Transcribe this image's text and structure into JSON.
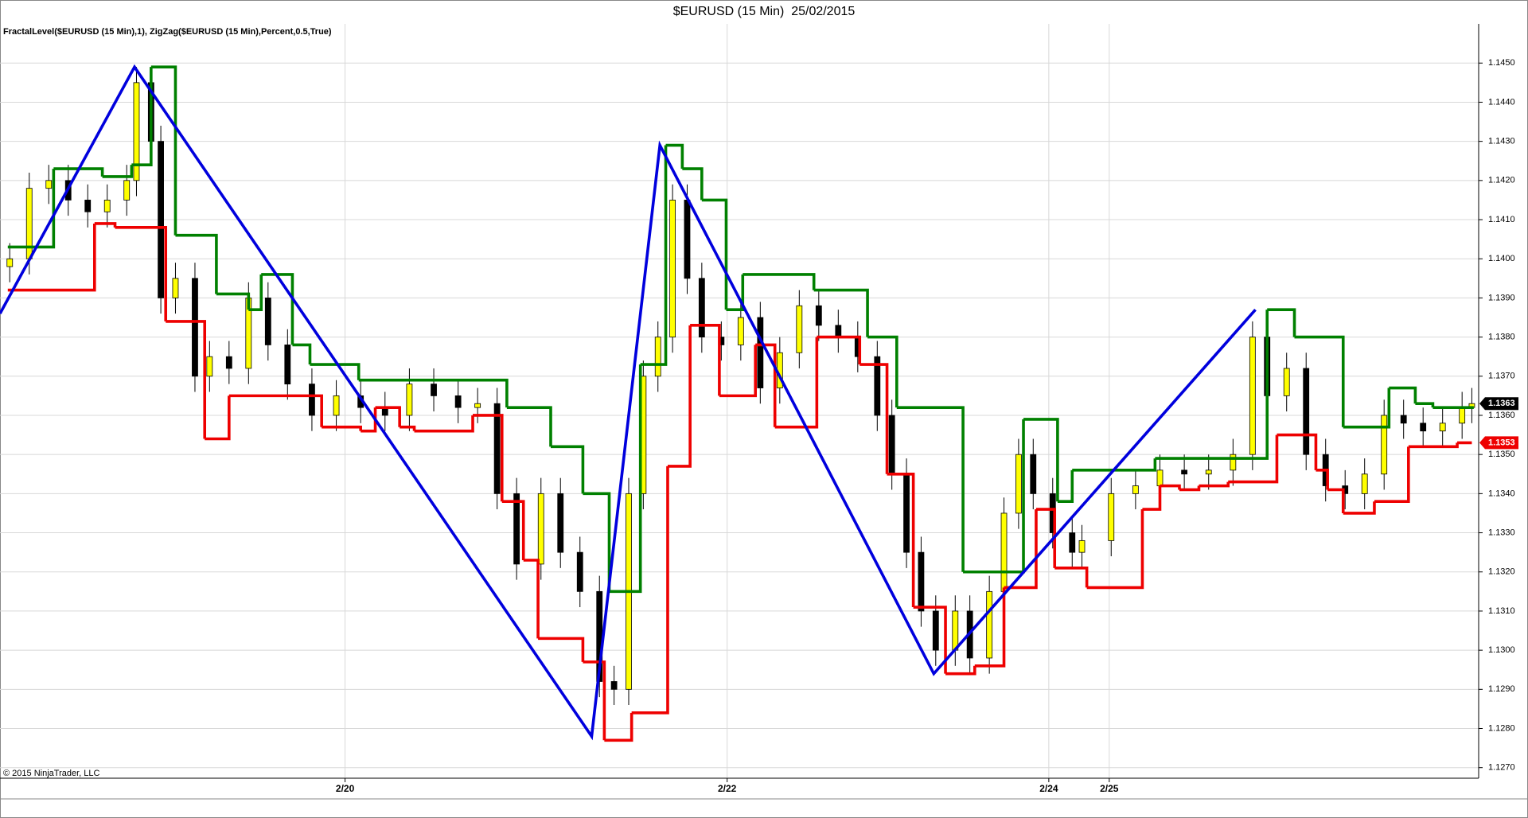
{
  "chart_data": {
    "type": "candlestick",
    "title": "$EURUSD (15 Min)  25/02/2015",
    "subtitle": "FractalLevel($EURUSD (15 Min),1), ZigZag($EURUSD (15 Min),Percent,0.5,True)",
    "footnote": "© 2015 NinjaTrader, LLC",
    "xlim": [
      0,
      303.4
    ],
    "ylim": [
      1.12675,
      1.14592
    ],
    "grid": true,
    "xticks": [
      {
        "value": 70.8,
        "label": "2/20"
      },
      {
        "value": 149.2,
        "label": "2/22"
      },
      {
        "value": 215.2,
        "label": "2/24"
      },
      {
        "value": 227.6,
        "label": "2/25"
      }
    ],
    "yticks": [
      {
        "value": 1.127,
        "label": "1.1270"
      },
      {
        "value": 1.128,
        "label": "1.1280"
      },
      {
        "value": 1.129,
        "label": "1.1290"
      },
      {
        "value": 1.13,
        "label": "1.1300"
      },
      {
        "value": 1.131,
        "label": "1.1310"
      },
      {
        "value": 1.132,
        "label": "1.1320"
      },
      {
        "value": 1.133,
        "label": "1.1330"
      },
      {
        "value": 1.134,
        "label": "1.1340"
      },
      {
        "value": 1.135,
        "label": "1.1350"
      },
      {
        "value": 1.136,
        "label": "1.1360"
      },
      {
        "value": 1.137,
        "label": "1.1370"
      },
      {
        "value": 1.138,
        "label": "1.1380"
      },
      {
        "value": 1.139,
        "label": "1.1390"
      },
      {
        "value": 1.14,
        "label": "1.1400"
      },
      {
        "value": 1.141,
        "label": "1.1410"
      },
      {
        "value": 1.142,
        "label": "1.1420"
      },
      {
        "value": 1.143,
        "label": "1.1430"
      },
      {
        "value": 1.144,
        "label": "1.1440"
      },
      {
        "value": 1.145,
        "label": "1.1450"
      }
    ],
    "up_color": "#ffff00",
    "down_color": "#000000",
    "x": [
      2,
      6,
      10,
      14,
      18,
      22,
      26,
      28,
      31,
      33,
      36,
      40,
      43,
      47,
      51,
      55,
      59,
      64,
      69,
      74,
      79,
      84,
      89,
      94,
      98,
      102,
      106,
      111,
      115,
      119,
      123,
      126,
      129,
      132,
      135,
      138,
      141,
      144,
      148,
      152,
      156,
      160,
      164,
      168,
      172,
      176,
      180,
      183,
      186,
      189,
      192,
      196,
      199,
      203,
      206,
      209,
      212,
      216,
      220,
      222,
      228,
      233,
      238,
      243,
      248,
      253,
      257,
      260,
      264,
      268,
      272,
      276,
      280,
      284,
      288,
      292,
      296,
      300,
      302
    ],
    "open": [
      1.1398,
      1.14,
      1.1418,
      1.142,
      1.1415,
      1.1412,
      1.1415,
      1.142,
      1.1445,
      1.143,
      1.139,
      1.1395,
      1.137,
      1.1375,
      1.1372,
      1.139,
      1.1378,
      1.1368,
      1.136,
      1.1365,
      1.1362,
      1.136,
      1.1368,
      1.1365,
      1.1362,
      1.1363,
      1.134,
      1.1322,
      1.134,
      1.1325,
      1.1315,
      1.1292,
      1.129,
      1.134,
      1.137,
      1.138,
      1.1415,
      1.1395,
      1.138,
      1.1378,
      1.1385,
      1.1367,
      1.1376,
      1.1388,
      1.1383,
      1.138,
      1.1375,
      1.136,
      1.1345,
      1.1325,
      1.131,
      1.13,
      1.131,
      1.1298,
      1.1315,
      1.1335,
      1.135,
      1.134,
      1.133,
      1.1325,
      1.1328,
      1.134,
      1.1342,
      1.1346,
      1.1345,
      1.1346,
      1.135,
      1.138,
      1.1365,
      1.1372,
      1.135,
      1.1342,
      1.134,
      1.1345,
      1.136,
      1.1358,
      1.1356,
      1.1358,
      1.1362
    ],
    "high": [
      1.1404,
      1.1422,
      1.1424,
      1.1424,
      1.1419,
      1.1419,
      1.1424,
      1.1449,
      1.1449,
      1.1434,
      1.1399,
      1.1399,
      1.1379,
      1.1379,
      1.1394,
      1.1394,
      1.1382,
      1.1372,
      1.1369,
      1.1369,
      1.1366,
      1.1372,
      1.1372,
      1.1369,
      1.1367,
      1.1367,
      1.1344,
      1.1344,
      1.1344,
      1.1329,
      1.1319,
      1.1296,
      1.1344,
      1.1374,
      1.1384,
      1.1419,
      1.1419,
      1.1399,
      1.1384,
      1.1389,
      1.1389,
      1.138,
      1.1392,
      1.1392,
      1.1387,
      1.1384,
      1.1379,
      1.1364,
      1.1349,
      1.1329,
      1.1314,
      1.1314,
      1.1314,
      1.1319,
      1.1339,
      1.1354,
      1.1354,
      1.1344,
      1.1334,
      1.1332,
      1.1344,
      1.1346,
      1.135,
      1.135,
      1.135,
      1.1354,
      1.1384,
      1.1384,
      1.1376,
      1.1376,
      1.1354,
      1.1346,
      1.1349,
      1.1364,
      1.1364,
      1.1362,
      1.1362,
      1.1366,
      1.1367
    ],
    "low": [
      1.1394,
      1.1396,
      1.1414,
      1.1411,
      1.1408,
      1.1408,
      1.1411,
      1.1416,
      1.1426,
      1.1386,
      1.1386,
      1.1366,
      1.1366,
      1.1368,
      1.1368,
      1.1374,
      1.1364,
      1.1356,
      1.1356,
      1.1358,
      1.1356,
      1.1356,
      1.1361,
      1.1358,
      1.1358,
      1.1336,
      1.1318,
      1.1318,
      1.1321,
      1.1311,
      1.1288,
      1.1286,
      1.1286,
      1.1336,
      1.1366,
      1.1376,
      1.1391,
      1.1376,
      1.1374,
      1.1374,
      1.1363,
      1.1363,
      1.1372,
      1.1379,
      1.1376,
      1.1371,
      1.1356,
      1.1341,
      1.1321,
      1.1306,
      1.1296,
      1.1296,
      1.1294,
      1.1294,
      1.1311,
      1.1331,
      1.1336,
      1.1326,
      1.1321,
      1.1321,
      1.1324,
      1.1336,
      1.1338,
      1.1341,
      1.1341,
      1.1342,
      1.1346,
      1.1361,
      1.1361,
      1.1346,
      1.1338,
      1.1336,
      1.1336,
      1.1341,
      1.1354,
      1.1352,
      1.1352,
      1.1354,
      1.1358
    ],
    "close": [
      1.14,
      1.1418,
      1.142,
      1.1415,
      1.1412,
      1.1415,
      1.142,
      1.1445,
      1.143,
      1.139,
      1.1395,
      1.137,
      1.1375,
      1.1372,
      1.139,
      1.1378,
      1.1368,
      1.136,
      1.1365,
      1.1362,
      1.136,
      1.1368,
      1.1365,
      1.1362,
      1.1363,
      1.134,
      1.1322,
      1.134,
      1.1325,
      1.1315,
      1.1292,
      1.129,
      1.134,
      1.137,
      1.138,
      1.1415,
      1.1395,
      1.138,
      1.1378,
      1.1385,
      1.1367,
      1.1376,
      1.1388,
      1.1383,
      1.138,
      1.1375,
      1.136,
      1.1345,
      1.1325,
      1.131,
      1.13,
      1.131,
      1.1298,
      1.1315,
      1.1335,
      1.135,
      1.134,
      1.133,
      1.1325,
      1.1328,
      1.134,
      1.1342,
      1.1346,
      1.1345,
      1.1346,
      1.135,
      1.138,
      1.1365,
      1.1372,
      1.135,
      1.1342,
      1.134,
      1.1345,
      1.136,
      1.1358,
      1.1356,
      1.1358,
      1.1362,
      1.1363
    ],
    "series": [
      {
        "style": "step",
        "color": "#008000",
        "x": [
          1.6,
          11,
          21,
          27,
          31,
          36,
          44.4,
          51,
          53.6,
          60,
          63.6,
          73.6,
          104,
          113,
          119.6,
          125,
          131.4,
          136.6,
          140,
          144,
          149,
          152.4,
          167,
          178,
          184,
          197.6,
          210,
          217,
          220,
          237,
          260,
          265.6,
          275.6,
          285,
          290.4,
          294,
          302.4
        ],
        "values": [
          1.1403,
          1.1423,
          1.1421,
          1.1424,
          1.1449,
          1.1406,
          1.1391,
          1.1387,
          1.1396,
          1.1378,
          1.1373,
          1.1369,
          1.1362,
          1.1352,
          1.134,
          1.1315,
          1.1373,
          1.1429,
          1.1423,
          1.1415,
          1.1387,
          1.1396,
          1.1392,
          1.138,
          1.1362,
          1.132,
          1.1359,
          1.1338,
          1.1346,
          1.1349,
          1.1387,
          1.138,
          1.1357,
          1.1367,
          1.1363,
          1.1362,
          1.1362
        ]
      },
      {
        "style": "step",
        "color": "#ee0000",
        "x": [
          1.6,
          19.4,
          23.6,
          34,
          42,
          47,
          66,
          74,
          77,
          82,
          85,
          97,
          103,
          107.4,
          110.4,
          119.6,
          124,
          129.6,
          137,
          141.6,
          147.6,
          155,
          159,
          167.6,
          176.4,
          182,
          187.4,
          194,
          200,
          206,
          212.6,
          216.4,
          223,
          234.4,
          238,
          242,
          246,
          252,
          262,
          270,
          272.4,
          275.6,
          282,
          289,
          299,
          302
        ],
        "values": [
          1.1392,
          1.1409,
          1.1408,
          1.1384,
          1.1354,
          1.1365,
          1.1357,
          1.1356,
          1.1362,
          1.1357,
          1.1356,
          1.136,
          1.1338,
          1.1323,
          1.1303,
          1.1297,
          1.1277,
          1.1284,
          1.1347,
          1.1383,
          1.1365,
          1.1378,
          1.1357,
          1.138,
          1.1373,
          1.1345,
          1.1311,
          1.1294,
          1.1296,
          1.1316,
          1.1336,
          1.1321,
          1.1316,
          1.1336,
          1.1342,
          1.1341,
          1.1342,
          1.1343,
          1.1355,
          1.1346,
          1.1341,
          1.1335,
          1.1338,
          1.1352,
          1.1353,
          1.1353
        ]
      },
      {
        "style": "line",
        "color": "#0000dd",
        "x": [
          0,
          27.6,
          121.4,
          135.4,
          191.6,
          257.6
        ],
        "values": [
          1.1386,
          1.1449,
          1.1278,
          1.1429,
          1.1294,
          1.1387
        ]
      }
    ],
    "price_labels": [
      1.1363,
      1.1353
    ],
    "price_label_colors": [
      "#000000",
      "#ee0000"
    ]
  }
}
